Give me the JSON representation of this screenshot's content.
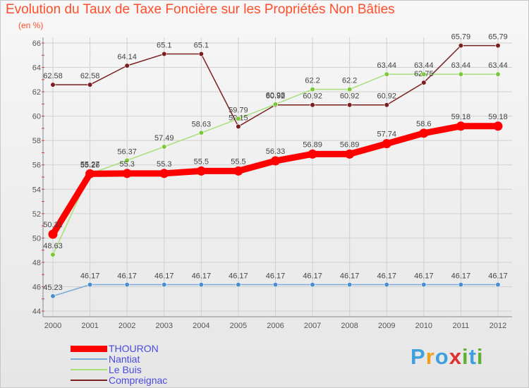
{
  "title": "Evolution du Taux de Taxe Foncière sur les Propriétés Non Bâties",
  "unit": "(en %)",
  "brand": "Proxiti",
  "brand_letters": [
    {
      "ch": "P",
      "color": "#3fa0e0"
    },
    {
      "ch": "r",
      "color": "#f0a020"
    },
    {
      "ch": "o",
      "color": "#3fa0e0"
    },
    {
      "ch": "x",
      "color": "#e03030"
    },
    {
      "ch": "i",
      "color": "#60b030"
    },
    {
      "ch": "t",
      "color": "#3fa0e0"
    },
    {
      "ch": "i",
      "color": "#60b030"
    }
  ],
  "chart_data": {
    "type": "line",
    "title": "Evolution du Taux de Taxe Foncière sur les Propriétés Non Bâties",
    "ylabel": "(en %)",
    "xlabel": "",
    "ylim": [
      44,
      66
    ],
    "yticks": [
      44,
      46,
      48,
      50,
      52,
      54,
      56,
      58,
      60,
      62,
      64,
      66
    ],
    "grid": true,
    "legend": "bottom-left",
    "x": [
      "2000",
      "2001",
      "2002",
      "2003",
      "2004",
      "2005",
      "2006",
      "2007",
      "2008",
      "2009",
      "2010",
      "2011",
      "2012"
    ],
    "series": [
      {
        "name": "Compreignac",
        "color": "#7a1f1f",
        "marker": "#7a1f1f",
        "values": [
          62.58,
          62.58,
          64.14,
          65.1,
          65.1,
          59.15,
          60.92,
          60.92,
          60.92,
          60.92,
          62.75,
          65.79,
          65.79
        ],
        "labels": [
          "62.58",
          "62.58",
          "64.14",
          "65.1",
          "65.1",
          "59.15",
          "60.92",
          "60.92",
          "60.92",
          "60.92",
          "62.75",
          "65.79",
          "65.79"
        ]
      },
      {
        "name": "Le Buis",
        "color": "#a8e07a",
        "marker": "#7cc83a",
        "values": [
          48.63,
          55.26,
          56.37,
          57.49,
          58.63,
          59.79,
          60.98,
          62.2,
          62.2,
          63.44,
          63.44,
          63.44,
          63.44
        ],
        "labels": [
          "48.63",
          "55.26",
          "56.37",
          "57.49",
          "58.63",
          "59.79",
          "60.98",
          "62.2",
          "62.2",
          "63.44",
          "63.44",
          "63.44",
          "63.44"
        ]
      },
      {
        "name": "Nantiat",
        "color": "#7aaad8",
        "marker": "#4a8ed0",
        "values": [
          45.23,
          46.17,
          46.17,
          46.17,
          46.17,
          46.17,
          46.17,
          46.17,
          46.17,
          46.17,
          46.17,
          46.17,
          46.17
        ],
        "labels": [
          "45.23",
          "46.17",
          "46.17",
          "46.17",
          "46.17",
          "46.17",
          "46.17",
          "46.17",
          "46.17",
          "46.17",
          "46.17",
          "46.17",
          "46.17"
        ]
      },
      {
        "name": "THOURON",
        "color": "#ff0000",
        "marker": "#ff0000",
        "thick": true,
        "values": [
          50.31,
          55.27,
          55.3,
          55.3,
          55.5,
          55.5,
          56.33,
          56.89,
          56.89,
          57.74,
          58.6,
          59.18,
          59.18
        ],
        "labels": [
          "50.31",
          "55.27",
          "55.3",
          "55.3",
          "55.5",
          "55.5",
          "56.33",
          "56.89",
          "56.89",
          "57.74",
          "58.6",
          "59.18",
          "59.18"
        ]
      }
    ],
    "legend_entries": [
      {
        "name": "THOURON",
        "color": "#ff0000",
        "thick": true
      },
      {
        "name": "Nantiat",
        "color": "#7aaad8",
        "thick": false
      },
      {
        "name": "Le Buis",
        "color": "#a8e07a",
        "thick": false
      },
      {
        "name": "Compreignac",
        "color": "#7a1f1f",
        "thick": false
      }
    ]
  }
}
